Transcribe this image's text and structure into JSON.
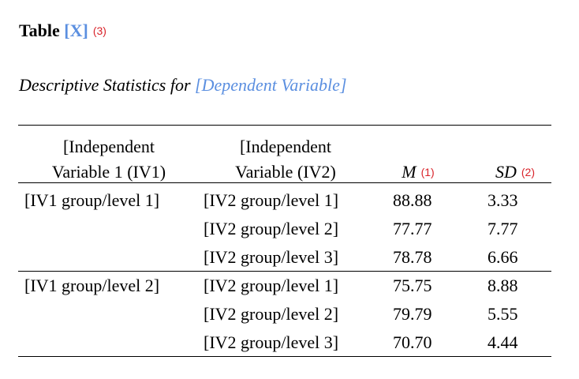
{
  "title": {
    "prefix": "Table",
    "placeholder": "[X]",
    "note": "(3)"
  },
  "subtitle": {
    "prefix": "Descriptive Statistics for",
    "placeholder": "[Dependent Variable]"
  },
  "headers": {
    "iv1_line1": "[Independent",
    "iv1_line2": "Variable 1 (IV1)",
    "iv2_line1": "[Independent",
    "iv2_line2": "Variable (IV2)",
    "m": "M",
    "m_note": "(1)",
    "sd": "SD",
    "sd_note": "(2)"
  },
  "rows": [
    {
      "iv1": "[IV1 group/level 1]",
      "iv2": "[IV2 group/level 1]",
      "m": "88.88",
      "sd": "3.33"
    },
    {
      "iv1": "",
      "iv2": "[IV2 group/level 2]",
      "m": "77.77",
      "sd": "7.77"
    },
    {
      "iv1": "",
      "iv2": "[IV2 group/level 3]",
      "m": "78.78",
      "sd": "6.66"
    },
    {
      "iv1": "[IV1 group/level 2]",
      "iv2": "[IV2 group/level 1]",
      "m": "75.75",
      "sd": "8.88"
    },
    {
      "iv1": "",
      "iv2": "[IV2 group/level 2]",
      "m": "79.79",
      "sd": "5.55"
    },
    {
      "iv1": "",
      "iv2": "[IV2 group/level 3]",
      "m": "70.70",
      "sd": "4.44"
    }
  ],
  "colors": {
    "placeholder": "#5b8fe0",
    "note": "#d9232a"
  }
}
